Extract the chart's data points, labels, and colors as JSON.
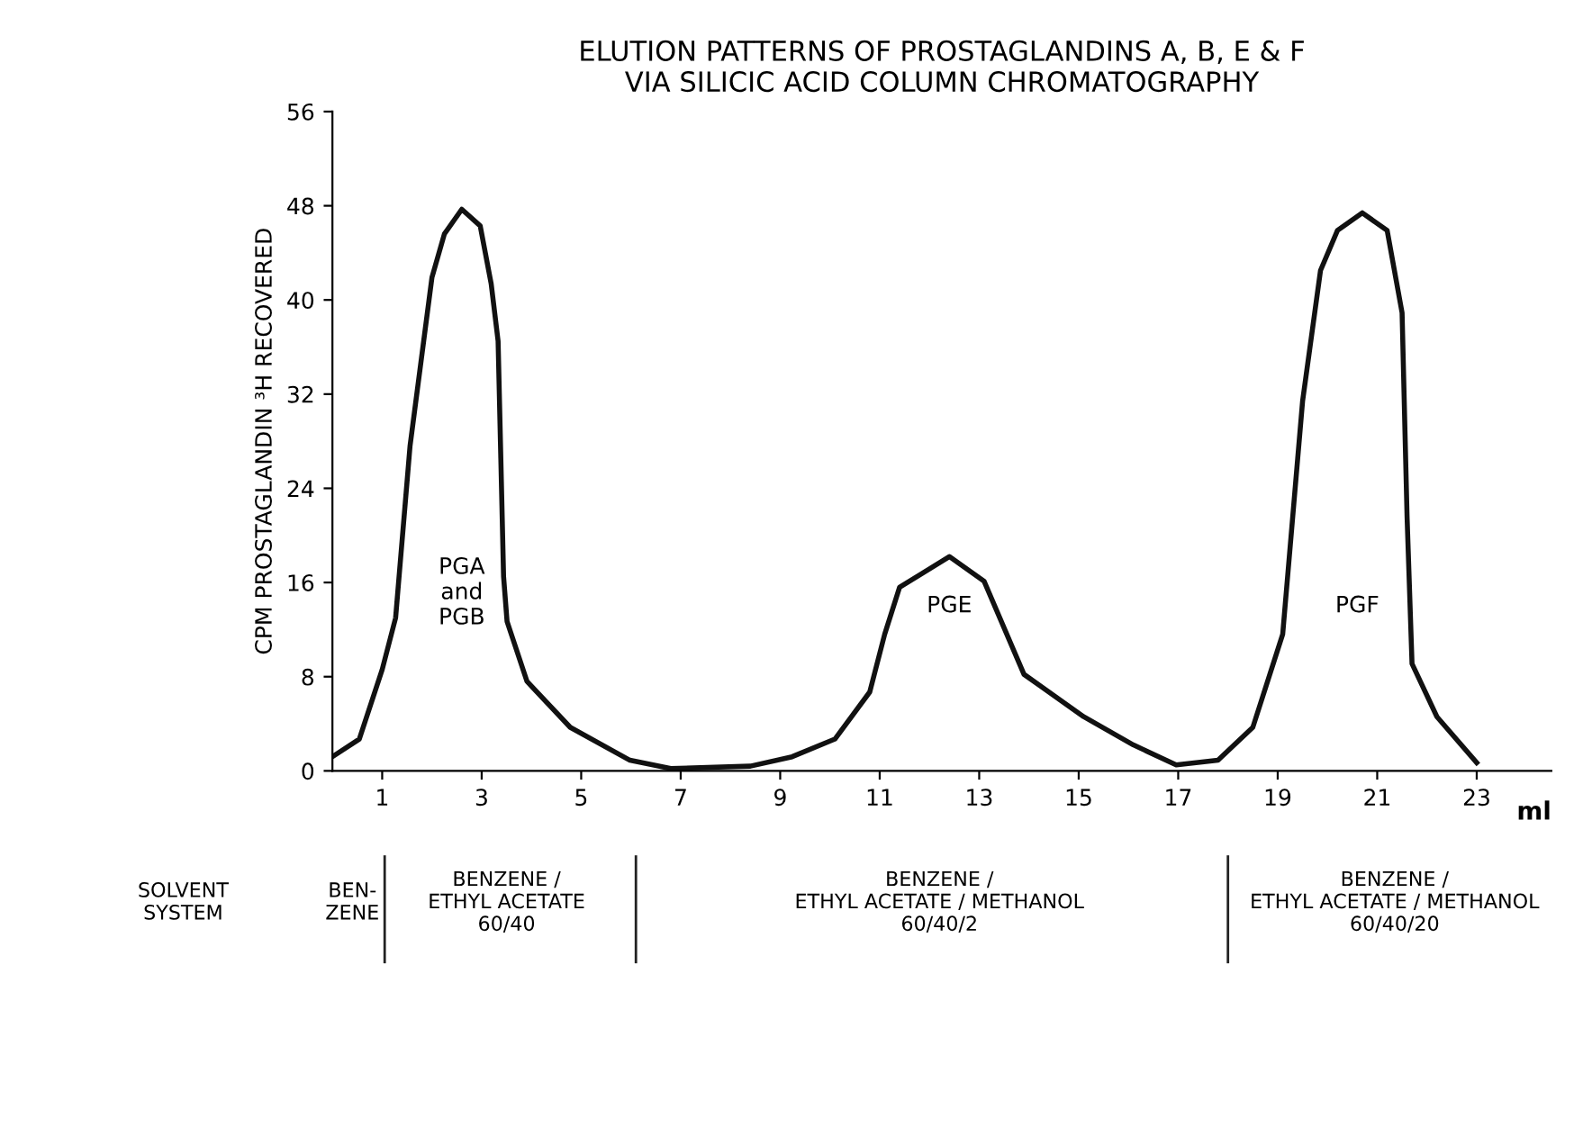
{
  "chart_data": {
    "type": "line",
    "title": "ELUTION PATTERNS OF PROSTAGLANDINS A, B, E & F\nVIA SILICIC ACID COLUMN CHROMATOGRAPHY",
    "xlabel": "ml",
    "ylabel": "CPM PROSTAGLANDIN ³H RECOVERED",
    "series": [
      {
        "color": "#111111",
        "x": [
          0,
          0.54,
          1.0,
          1.27,
          1.56,
          2.0,
          2.25,
          2.6,
          2.97,
          3.19,
          3.33,
          3.44,
          3.51,
          3.91,
          4.78,
          5.98,
          6.8,
          8.4,
          9.24,
          10.1,
          10.8,
          11.1,
          11.4,
          12.4,
          13.1,
          13.9,
          15.1,
          16.1,
          16.96,
          17.8,
          18.5,
          19.1,
          19.5,
          19.86,
          20.2,
          20.7,
          21.2,
          21.5,
          21.6,
          21.7,
          22.2,
          23.0
        ],
        "values": [
          1.2,
          2.7,
          8.6,
          13,
          27.6,
          41.9,
          45.6,
          47.7,
          46.3,
          41.4,
          36.5,
          16.5,
          12.7,
          7.6,
          3.7,
          0.9,
          0.2,
          0.4,
          1.2,
          2.7,
          6.7,
          11.6,
          15.6,
          18.2,
          16.1,
          8.2,
          4.6,
          2.2,
          0.5,
          0.9,
          3.7,
          11.6,
          31.4,
          42.5,
          45.9,
          47.4,
          45.9,
          38.9,
          21.6,
          9.1,
          4.6,
          0.7
        ]
      }
    ],
    "xlim": [
      0,
      24.5
    ],
    "xticks": [
      1,
      3,
      5,
      7,
      9,
      11,
      13,
      15,
      17,
      19,
      21,
      23
    ],
    "ylim": [
      0,
      56
    ],
    "yticks": [
      0,
      8,
      16,
      24,
      32,
      40,
      48,
      56
    ],
    "grid": false,
    "legend": false,
    "marker": "none",
    "line_style": "solid",
    "annotations": [
      "PGA\nand\nPGB",
      "PGE",
      "PGF",
      "SOLVENT\nSYSTEM",
      "BEN-\nZENE",
      "BENZENE /\nETHYL ACETATE\n60/40",
      "BENZENE /\nETHYL ACETATE / METHANOL\n60/40/2",
      "BENZENE /\nETHYL ACETATE / METHANOL\n60/40/20"
    ]
  }
}
